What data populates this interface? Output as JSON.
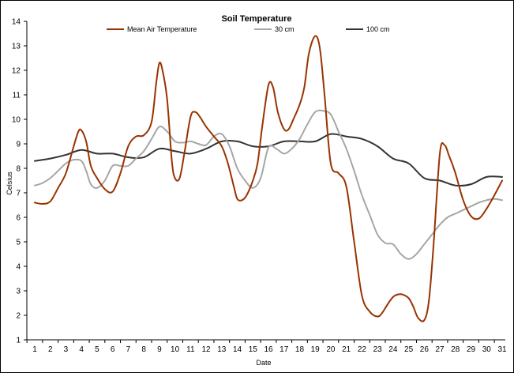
{
  "chart_data": {
    "type": "line",
    "title": "Soil Temperature",
    "xlabel": "Date",
    "ylabel": "Celsius",
    "x": [
      1,
      2,
      3,
      4,
      5,
      6,
      7,
      8,
      9,
      10,
      11,
      12,
      13,
      14,
      15,
      16,
      17,
      18,
      19,
      20,
      21,
      22,
      23,
      24,
      25,
      26,
      27,
      28,
      29,
      30,
      31
    ],
    "xlim": [
      1,
      31
    ],
    "ylim": [
      1,
      14
    ],
    "yticks": [
      1,
      2,
      3,
      4,
      5,
      6,
      7,
      8,
      9,
      10,
      11,
      12,
      13,
      14
    ],
    "grid": false,
    "legend_position": "top",
    "series": [
      {
        "name": "Mean Air Temperature",
        "color": "#993300",
        "x": [
          1,
          1.5,
          2,
          2.5,
          3,
          3.5,
          3.8,
          4,
          4.3,
          4.6,
          5,
          5.5,
          6,
          6.5,
          7,
          7.5,
          8,
          8.5,
          8.8,
          9,
          9.2,
          9.5,
          9.8,
          10,
          10.3,
          10.6,
          11,
          11.3,
          11.6,
          12,
          12.5,
          13,
          13.4,
          13.8,
          14,
          14.3,
          14.6,
          15,
          15.3,
          15.6,
          16,
          16.3,
          16.6,
          17,
          17.3,
          17.6,
          18,
          18.3,
          18.6,
          19,
          19.3,
          19.6,
          20,
          20.5,
          21,
          21.5,
          22,
          22.5,
          23,
          23.3,
          23.7,
          24,
          24.3,
          24.6,
          25,
          25.3,
          25.6,
          26,
          26.3,
          26.6,
          27,
          27.3,
          27.6,
          28,
          28.5,
          29,
          29.5,
          30,
          30.5,
          31
        ],
        "values": [
          6.6,
          6.55,
          6.65,
          7.2,
          7.8,
          8.9,
          9.5,
          9.55,
          9.1,
          8.1,
          7.6,
          7.15,
          7.05,
          7.8,
          8.9,
          9.3,
          9.35,
          9.9,
          11.5,
          12.3,
          12.0,
          10.8,
          8.3,
          7.6,
          7.6,
          8.6,
          10.1,
          10.3,
          10.1,
          9.7,
          9.3,
          8.9,
          8.2,
          7.2,
          6.75,
          6.7,
          6.9,
          7.5,
          8.2,
          9.7,
          11.4,
          11.3,
          10.3,
          9.6,
          9.6,
          10.0,
          10.6,
          11.3,
          12.7,
          13.4,
          12.9,
          11.0,
          8.2,
          7.8,
          7.25,
          5.0,
          2.8,
          2.15,
          1.95,
          2.1,
          2.5,
          2.75,
          2.85,
          2.85,
          2.7,
          2.35,
          1.9,
          1.8,
          2.6,
          4.9,
          8.6,
          8.95,
          8.5,
          7.8,
          6.7,
          6.05,
          5.95,
          6.35,
          6.9,
          7.5
        ]
      },
      {
        "name": "30 cm",
        "color": "#a6a6a6",
        "x": [
          1,
          1.5,
          2,
          2.5,
          3,
          3.5,
          4,
          4.3,
          4.6,
          5,
          5.5,
          6,
          6.5,
          7,
          7.5,
          8,
          8.5,
          9,
          9.5,
          10,
          10.5,
          11,
          11.5,
          12,
          12.5,
          13,
          13.5,
          14,
          14.5,
          15,
          15.5,
          16,
          16.5,
          17,
          17.5,
          18,
          18.5,
          19,
          19.5,
          20,
          20.5,
          21,
          21.5,
          22,
          22.5,
          23,
          23.5,
          24,
          24.5,
          25,
          25.5,
          26,
          26.5,
          27,
          27.5,
          28,
          28.5,
          29,
          29.5,
          30,
          30.5,
          31
        ],
        "values": [
          7.3,
          7.4,
          7.6,
          7.9,
          8.2,
          8.35,
          8.3,
          7.9,
          7.35,
          7.2,
          7.5,
          8.1,
          8.1,
          8.1,
          8.4,
          8.7,
          9.2,
          9.7,
          9.5,
          9.1,
          9.05,
          9.1,
          9.0,
          8.95,
          9.3,
          9.4,
          8.9,
          8.0,
          7.5,
          7.2,
          7.6,
          8.85,
          8.8,
          8.6,
          8.8,
          9.2,
          9.8,
          10.3,
          10.35,
          10.2,
          9.5,
          8.8,
          7.9,
          6.9,
          6.1,
          5.3,
          4.95,
          4.9,
          4.5,
          4.3,
          4.5,
          4.9,
          5.3,
          5.7,
          6.0,
          6.15,
          6.3,
          6.45,
          6.6,
          6.7,
          6.75,
          6.7
        ]
      },
      {
        "name": "100 cm",
        "color": "#333333",
        "x": [
          1,
          2,
          3,
          4,
          5,
          6,
          7,
          8,
          9,
          10,
          11,
          12,
          13,
          14,
          15,
          16,
          17,
          18,
          19,
          20,
          21,
          22,
          23,
          24,
          25,
          26,
          27,
          28,
          29,
          30,
          31
        ],
        "values": [
          8.3,
          8.4,
          8.55,
          8.75,
          8.6,
          8.6,
          8.45,
          8.45,
          8.8,
          8.7,
          8.6,
          8.8,
          9.1,
          9.1,
          8.9,
          8.9,
          9.1,
          9.1,
          9.1,
          9.4,
          9.3,
          9.2,
          8.9,
          8.4,
          8.2,
          7.6,
          7.5,
          7.3,
          7.35,
          7.65,
          7.65
        ]
      }
    ]
  }
}
